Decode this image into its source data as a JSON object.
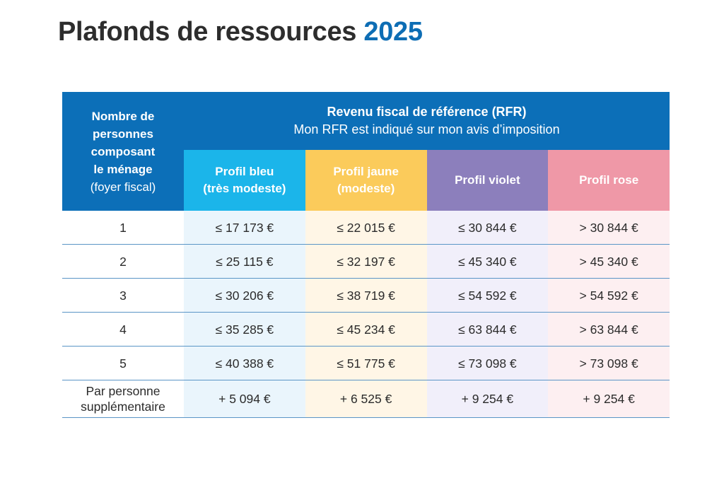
{
  "title": {
    "main": "Plafonds de ressources",
    "year": "2025"
  },
  "header": {
    "left_line1": "Nombre de",
    "left_line2": "personnes",
    "left_line3": "composant",
    "left_line4": "le ménage",
    "left_line5": "(foyer fiscal)",
    "rfr_title": "Revenu fiscal de référence (RFR)",
    "rfr_subtitle": "Mon RFR est indiqué sur mon avis d’imposition",
    "profiles": [
      {
        "line1": "Profil bleu",
        "line2": "(très modeste)",
        "color": "#1bb5ea"
      },
      {
        "line1": "Profil jaune",
        "line2": "(modeste)",
        "color": "#fbcb5b"
      },
      {
        "line1": "Profil violet",
        "line2": "",
        "color": "#8c7fbc"
      },
      {
        "line1": "Profil rose",
        "line2": "",
        "color": "#ef98a7"
      }
    ]
  },
  "rows": [
    {
      "label": "1",
      "values": [
        "≤ 17 173 €",
        "≤ 22 015 €",
        "≤ 30 844 €",
        "> 30 844 €"
      ]
    },
    {
      "label": "2",
      "values": [
        "≤ 25 115 €",
        "≤ 32 197 €",
        "≤ 45 340 €",
        "> 45 340 €"
      ]
    },
    {
      "label": "3",
      "values": [
        "≤ 30 206 €",
        "≤ 38 719 €",
        "≤ 54 592 €",
        "> 54 592 €"
      ]
    },
    {
      "label": "4",
      "values": [
        "≤ 35 285 €",
        "≤ 45 234 €",
        "≤ 63 844 €",
        "> 63 844 €"
      ]
    },
    {
      "label": "5",
      "values": [
        "≤ 40 388 €",
        "≤ 51 775 €",
        "≤ 73 098 €",
        "> 73 098 €"
      ]
    },
    {
      "label": "Par personne",
      "label2": "supplémentaire",
      "values": [
        "+ 5 094 €",
        "+ 6 525 €",
        "+ 9 254 €",
        "+ 9 254 €"
      ]
    }
  ]
}
